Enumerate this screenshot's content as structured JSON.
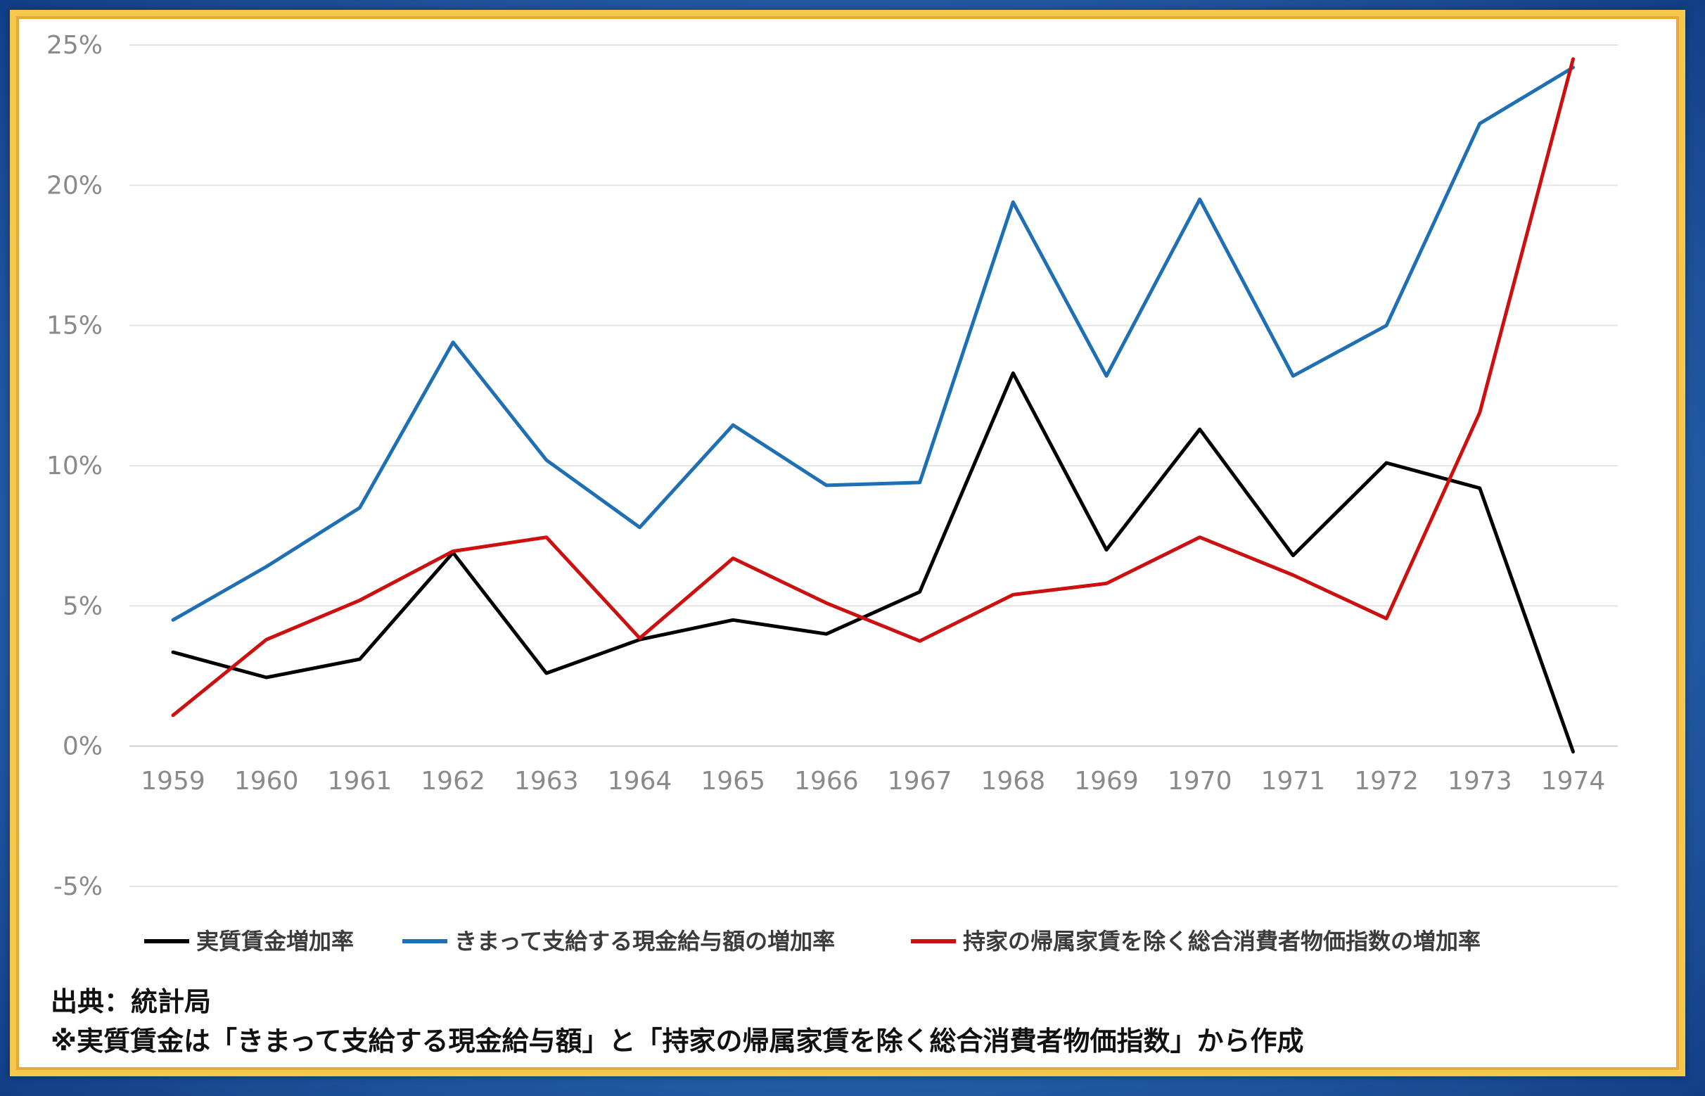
{
  "chart_data": {
    "type": "line",
    "categories": [
      "1959",
      "1960",
      "1961",
      "1962",
      "1963",
      "1964",
      "1965",
      "1966",
      "1967",
      "1968",
      "1969",
      "1970",
      "1971",
      "1972",
      "1973",
      "1974"
    ],
    "ylim": [
      -5,
      25
    ],
    "yticks": [
      25,
      20,
      15,
      10,
      5,
      0,
      -5
    ],
    "ytick_labels": [
      "25%",
      "20%",
      "15%",
      "10%",
      "5%",
      "0%",
      "-5%"
    ],
    "grid": true,
    "legend_position": "bottom",
    "series": [
      {
        "name": "実質賃金増加率",
        "color": "#000000",
        "values": [
          3.35,
          2.45,
          3.1,
          6.9,
          2.6,
          3.8,
          4.5,
          4.0,
          5.5,
          13.3,
          7.0,
          11.3,
          6.8,
          10.1,
          9.2,
          -0.2
        ]
      },
      {
        "name": "きまって支給する現金給与額の増加率",
        "color": "#1f6fb4",
        "values": [
          4.5,
          6.4,
          8.5,
          14.4,
          10.2,
          7.8,
          11.45,
          9.3,
          9.4,
          19.4,
          13.2,
          19.5,
          13.2,
          15.0,
          22.2,
          24.2
        ]
      },
      {
        "name": "持家の帰属家賃を除く総合消費者物価指数の増加率",
        "color": "#cc1010",
        "values": [
          1.1,
          3.8,
          5.2,
          6.95,
          7.45,
          3.85,
          6.7,
          5.1,
          3.75,
          5.4,
          5.8,
          7.45,
          6.1,
          4.55,
          11.9,
          24.5
        ]
      }
    ]
  },
  "notes": {
    "source": "出典：統計局",
    "remark": "※実質賃金は「きまって支給する現金給与額」と「持家の帰属家賃を除く総合消費者物価指数」から作成"
  }
}
